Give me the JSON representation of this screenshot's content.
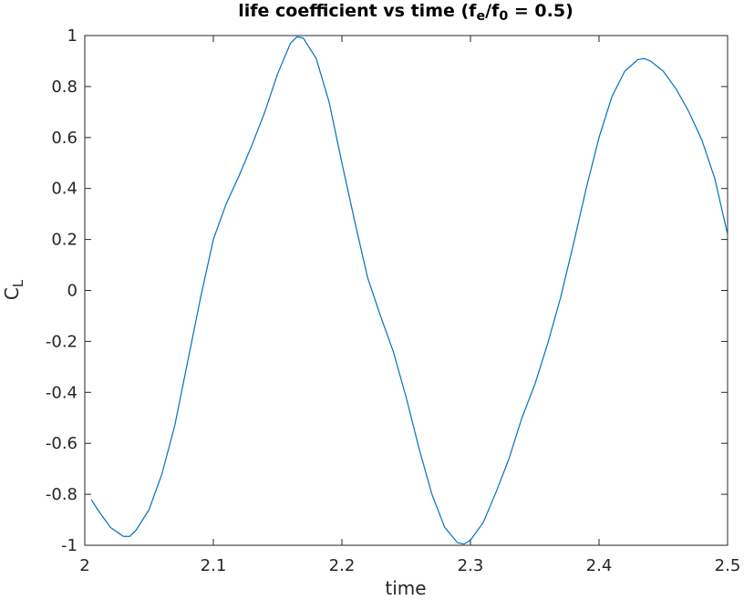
{
  "chart_data": {
    "type": "line",
    "title_parts": [
      {
        "text": "life coefficient vs time (f"
      },
      {
        "text": "e",
        "sub": true
      },
      {
        "text": "/f"
      },
      {
        "text": "0",
        "sub": true
      },
      {
        "text": " = 0.5)"
      }
    ],
    "xlabel": "time",
    "ylabel_parts": [
      {
        "text": "C"
      },
      {
        "text": "L",
        "sub": true
      }
    ],
    "x": [
      2.005,
      2.01,
      2.02,
      2.03,
      2.035,
      2.04,
      2.05,
      2.06,
      2.07,
      2.08,
      2.09,
      2.1,
      2.11,
      2.12,
      2.13,
      2.14,
      2.15,
      2.16,
      2.165,
      2.17,
      2.18,
      2.19,
      2.2,
      2.21,
      2.22,
      2.23,
      2.24,
      2.25,
      2.26,
      2.27,
      2.28,
      2.29,
      2.295,
      2.3,
      2.31,
      2.32,
      2.33,
      2.34,
      2.35,
      2.36,
      2.37,
      2.38,
      2.39,
      2.4,
      2.41,
      2.42,
      2.43,
      2.435,
      2.44,
      2.45,
      2.46,
      2.47,
      2.48,
      2.49,
      2.5
    ],
    "series": [
      {
        "color": "#0072bd",
        "values": [
          -0.82,
          -0.86,
          -0.93,
          -0.965,
          -0.965,
          -0.94,
          -0.86,
          -0.72,
          -0.53,
          -0.28,
          -0.03,
          0.2,
          0.34,
          0.45,
          0.57,
          0.7,
          0.85,
          0.97,
          0.995,
          0.99,
          0.91,
          0.74,
          0.5,
          0.27,
          0.05,
          -0.1,
          -0.24,
          -0.42,
          -0.62,
          -0.8,
          -0.93,
          -0.99,
          -0.995,
          -0.98,
          -0.91,
          -0.79,
          -0.66,
          -0.5,
          -0.37,
          -0.21,
          -0.03,
          0.18,
          0.4,
          0.6,
          0.76,
          0.86,
          0.905,
          0.91,
          0.9,
          0.86,
          0.79,
          0.7,
          0.59,
          0.44,
          0.22
        ]
      }
    ],
    "xlim": [
      2,
      2.5
    ],
    "xticks": [
      2,
      2.1,
      2.2,
      2.3,
      2.4,
      2.5
    ],
    "ylim": [
      -1,
      1
    ],
    "yticks": [
      -1,
      -0.8,
      -0.6,
      -0.4,
      -0.2,
      0,
      0.2,
      0.4,
      0.6,
      0.8,
      1
    ]
  }
}
